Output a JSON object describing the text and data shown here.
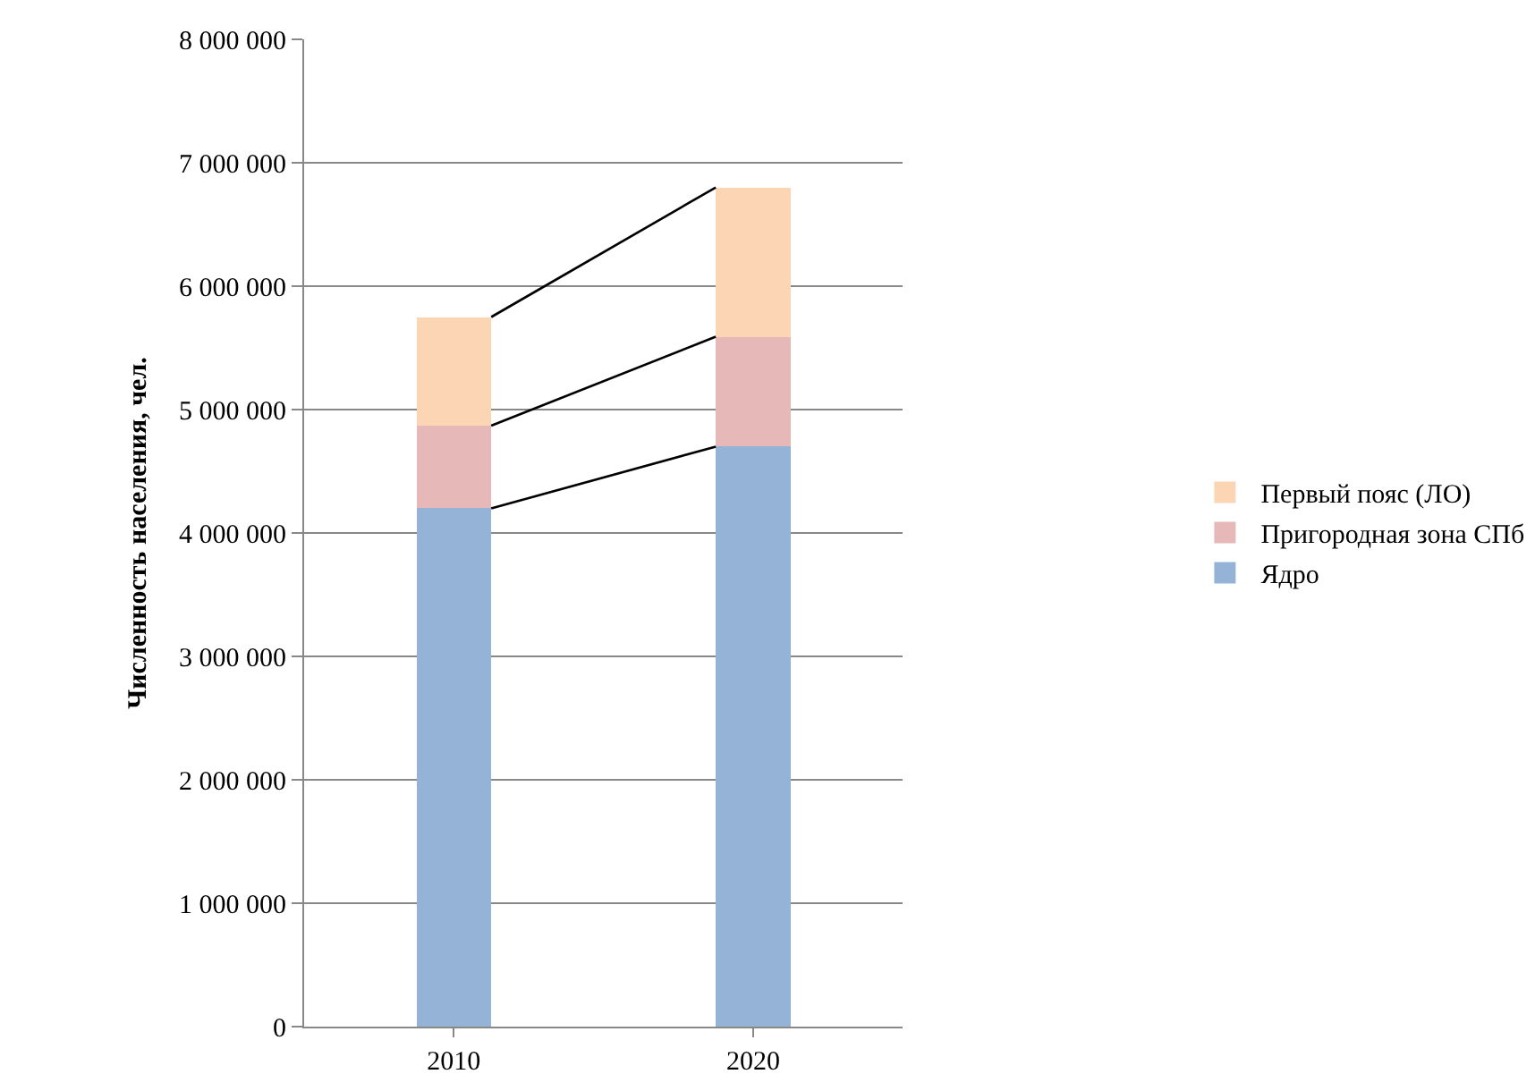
{
  "chart_data": {
    "type": "bar",
    "stacked": true,
    "ylabel": "Численность населения, чел.",
    "categories": [
      "2010",
      "2020"
    ],
    "series": [
      {
        "name": "Ядро",
        "color": "#95b3d7",
        "values": [
          4200000,
          4700000
        ]
      },
      {
        "name": "Пригородная зона СПб",
        "color": "#e6b9b8",
        "values": [
          670000,
          890000
        ]
      },
      {
        "name": "Первый пояс (ЛО)",
        "color": "#fcd5b5",
        "values": [
          880000,
          1210000
        ]
      }
    ],
    "ylim": [
      0,
      8000000
    ],
    "yticks": [
      {
        "value": 0,
        "label": "0"
      },
      {
        "value": 1000000,
        "label": "1 000 000"
      },
      {
        "value": 2000000,
        "label": "2 000 000"
      },
      {
        "value": 3000000,
        "label": "3 000 000"
      },
      {
        "value": 4000000,
        "label": "4 000 000"
      },
      {
        "value": 5000000,
        "label": "5 000 000"
      },
      {
        "value": 6000000,
        "label": "6 000 000"
      },
      {
        "value": 7000000,
        "label": "7 000 000"
      },
      {
        "value": 8000000,
        "label": "8 000 000"
      }
    ],
    "grid": "y",
    "legend": "right"
  }
}
